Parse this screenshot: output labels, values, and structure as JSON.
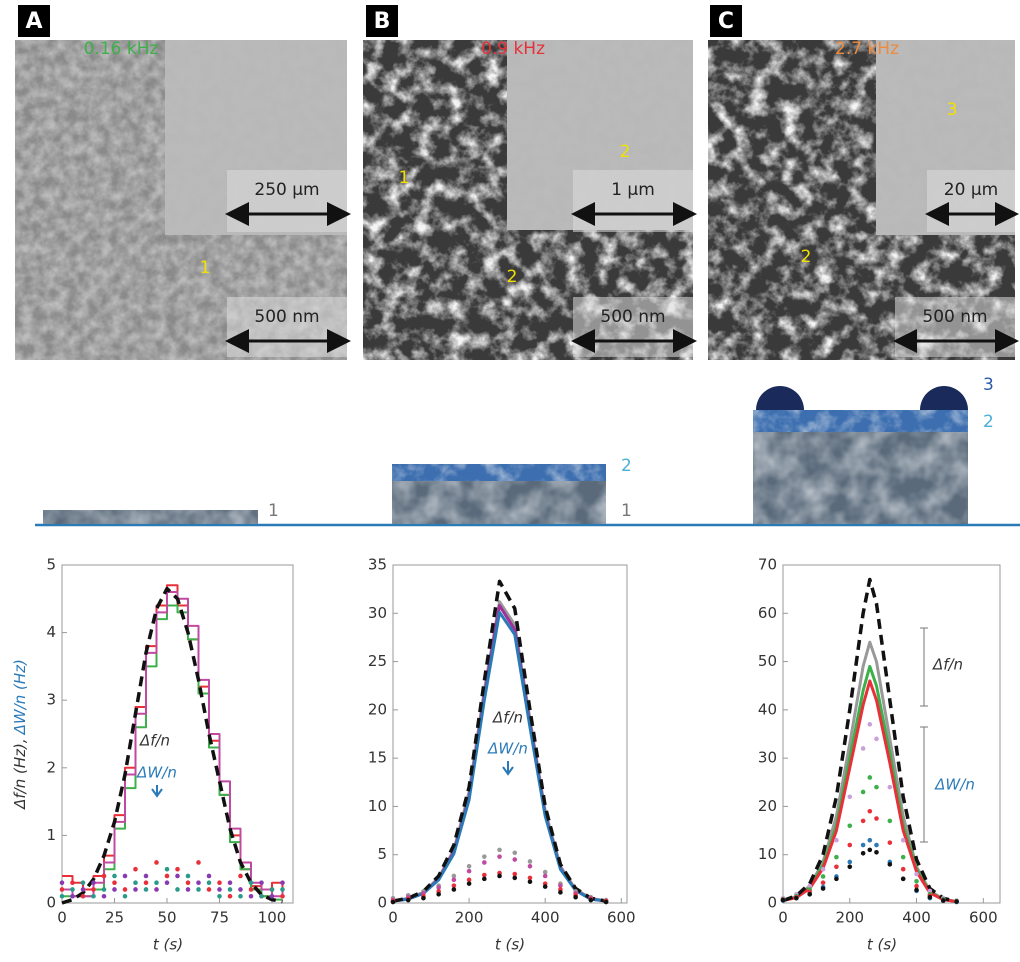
{
  "panels": [
    {
      "label": "A",
      "frequency": "0.16 kHz",
      "color": "#3cb04a",
      "scale_bars": [
        "250 μm",
        "500 nm"
      ],
      "markers": [
        "1"
      ]
    },
    {
      "label": "B",
      "frequency": "0.9 kHz",
      "color": "#e8303a",
      "scale_bars": [
        "1 μm",
        "500 nm"
      ],
      "markers": [
        "1",
        "2",
        "2"
      ]
    },
    {
      "label": "C",
      "frequency": "2.7 kHz",
      "color": "#f08a3c",
      "scale_bars": [
        "20 μm",
        "500 nm"
      ],
      "markers": [
        "3",
        "2"
      ]
    }
  ],
  "schematic": {
    "labels": [
      [
        "1"
      ],
      [
        "2",
        "1"
      ],
      [
        "3",
        "2"
      ]
    ]
  },
  "chart_data": [
    {
      "type": "line",
      "ylabel": [
        "Δf/n (Hz),",
        "ΔW/n (Hz)"
      ],
      "ylabel_colors": [
        "#333333",
        "#2a7ab8"
      ],
      "xlabel": "t (s)",
      "x": [
        0,
        5,
        10,
        15,
        20,
        25,
        30,
        35,
        40,
        45,
        50,
        55,
        60,
        65,
        70,
        75,
        80,
        85,
        90,
        95,
        100,
        105
      ],
      "xlim": [
        0,
        110
      ],
      "xticks": [
        0,
        25,
        50,
        75,
        100
      ],
      "ylim": [
        0,
        5
      ],
      "yticks": [
        0,
        1,
        2,
        3,
        4,
        5
      ],
      "annotations": [
        {
          "text": "Δf/n",
          "color": "#333333"
        },
        {
          "text": "ΔW/n",
          "color": "#2a7ab8"
        }
      ],
      "series": [
        {
          "style": "step",
          "color": "#e8303a",
          "values": [
            0.4,
            0.3,
            0.2,
            0.4,
            0.7,
            1.3,
            2.0,
            2.9,
            3.8,
            4.4,
            4.7,
            4.4,
            3.9,
            3.2,
            2.4,
            1.6,
            1.0,
            0.5,
            0.25,
            0.1,
            0.3,
            0.1
          ]
        },
        {
          "style": "step",
          "color": "#3cb04a",
          "values": [
            0.1,
            0.1,
            0.1,
            0.2,
            0.5,
            1.1,
            1.7,
            2.6,
            3.5,
            4.2,
            4.4,
            4.3,
            3.9,
            3.1,
            2.3,
            1.6,
            0.9,
            0.5,
            0.2,
            0.1,
            0.05,
            0.05
          ]
        },
        {
          "style": "step",
          "color": "#c04aa0",
          "values": [
            0.2,
            0.1,
            0.1,
            0.3,
            0.6,
            1.2,
            1.9,
            2.8,
            3.7,
            4.3,
            4.6,
            4.5,
            4.1,
            3.3,
            2.5,
            1.8,
            1.1,
            0.6,
            0.3,
            0.2,
            0.1,
            0.2
          ]
        },
        {
          "style": "dashed",
          "color": "#111111",
          "values": [
            0,
            0.05,
            0.15,
            0.35,
            0.7,
            1.2,
            1.9,
            2.8,
            3.7,
            4.35,
            4.65,
            4.5,
            4.0,
            3.3,
            2.5,
            1.8,
            1.1,
            0.6,
            0.3,
            0.12,
            0.05,
            0.02
          ]
        },
        {
          "style": "dots",
          "color": "#e8303a",
          "values": [
            0.2,
            0.3,
            0.1,
            0.2,
            0.4,
            0.3,
            0.2,
            0.5,
            0.3,
            0.6,
            0.4,
            0.5,
            0.3,
            0.6,
            0.2,
            0.3,
            0.1,
            0.4,
            0.2,
            0.1,
            0.2,
            0.1
          ]
        },
        {
          "style": "dots",
          "color": "#2a9a8a",
          "values": [
            0.1,
            0.2,
            0.3,
            0.1,
            0.2,
            0.4,
            0.1,
            0.3,
            0.2,
            0.3,
            0.5,
            0.2,
            0.4,
            0.2,
            0.3,
            0.1,
            0.2,
            0.1,
            0.3,
            0.1,
            0.2,
            0.2
          ]
        },
        {
          "style": "dots",
          "color": "#8a3ab0",
          "values": [
            0.3,
            0.1,
            0.2,
            0.3,
            0.1,
            0.2,
            0.4,
            0.2,
            0.4,
            0.2,
            0.3,
            0.4,
            0.2,
            0.3,
            0.4,
            0.2,
            0.3,
            0.2,
            0.1,
            0.3,
            0.1,
            0.3
          ]
        }
      ]
    },
    {
      "type": "line",
      "xlabel": "t (s)",
      "x": [
        0,
        40,
        80,
        120,
        160,
        200,
        240,
        280,
        320,
        360,
        400,
        440,
        480,
        520,
        560
      ],
      "xlim": [
        0,
        615
      ],
      "xticks": [
        0,
        200,
        400,
        600
      ],
      "ylim": [
        0,
        35
      ],
      "yticks": [
        0,
        5,
        10,
        15,
        20,
        25,
        30,
        35
      ],
      "annotations": [
        {
          "text": "Δf/n",
          "color": "#333333"
        },
        {
          "text": "ΔW/n",
          "color": "#2a7ab8"
        }
      ],
      "series": [
        {
          "style": "line",
          "color": "#999999",
          "values": [
            0.2,
            0.5,
            1.1,
            2.6,
            5.5,
            11.5,
            22,
            31.2,
            28.8,
            19,
            9.5,
            3.8,
            1.4,
            0.5,
            0.2
          ]
        },
        {
          "style": "line",
          "color": "#a0309a",
          "values": [
            0.2,
            0.4,
            1.0,
            2.5,
            5.3,
            11,
            21.5,
            30.8,
            28.3,
            18.6,
            9.2,
            3.6,
            1.3,
            0.4,
            0.2
          ]
        },
        {
          "style": "line",
          "color": "#2a7ab8",
          "values": [
            0.2,
            0.4,
            1.0,
            2.4,
            5.1,
            10.7,
            21,
            30.1,
            27.8,
            18.2,
            9,
            3.5,
            1.3,
            0.4,
            0.2
          ]
        },
        {
          "style": "dashed",
          "color": "#111111",
          "values": [
            0.2,
            0.5,
            1.2,
            2.8,
            6,
            12,
            23,
            33.3,
            30.5,
            20,
            10,
            4,
            1.5,
            0.5,
            0.2
          ]
        },
        {
          "style": "dots",
          "color": "#999999",
          "values": [
            0.5,
            0.8,
            1.2,
            1.8,
            2.8,
            3.8,
            4.8,
            5.5,
            5.2,
            4.3,
            3.2,
            2.0,
            1.2,
            0.6,
            0.3
          ]
        },
        {
          "style": "dots",
          "color": "#c04aa0",
          "values": [
            0.3,
            0.6,
            1.0,
            1.6,
            2.4,
            3.3,
            4.2,
            4.8,
            4.5,
            3.8,
            2.8,
            1.8,
            1.0,
            0.5,
            0.2
          ]
        },
        {
          "style": "dots",
          "color": "#e8303a",
          "values": [
            0.2,
            0.4,
            0.7,
            1.2,
            1.8,
            2.4,
            2.9,
            3.1,
            3.0,
            2.6,
            2.0,
            1.4,
            0.8,
            0.4,
            0.2
          ]
        },
        {
          "style": "dots",
          "color": "#111111",
          "values": [
            0.1,
            0.3,
            0.5,
            0.9,
            1.4,
            2.0,
            2.5,
            2.8,
            2.6,
            2.2,
            1.7,
            1.1,
            0.6,
            0.3,
            0.1
          ]
        }
      ]
    },
    {
      "type": "line",
      "xlabel": "t (s)",
      "x": [
        0,
        40,
        80,
        120,
        160,
        200,
        240,
        260,
        280,
        320,
        360,
        400,
        440,
        480,
        520
      ],
      "xlim": [
        0,
        650
      ],
      "xticks": [
        0,
        200,
        400,
        600
      ],
      "ylim": [
        0,
        70
      ],
      "yticks": [
        0,
        10,
        20,
        30,
        40,
        50,
        60,
        70
      ],
      "annotations": [
        {
          "text": "Δf/n",
          "color": "#333333"
        },
        {
          "text": "ΔW/n",
          "color": "#2a7ab8"
        }
      ],
      "series": [
        {
          "style": "line",
          "color": "#999999",
          "values": [
            0.5,
            1.3,
            3.5,
            8.5,
            18,
            33,
            49,
            54,
            50,
            34,
            18,
            7.5,
            2.5,
            0.8,
            0.3
          ]
        },
        {
          "style": "line",
          "color": "#3cb04a",
          "values": [
            0.5,
            1.2,
            3.2,
            7.8,
            16,
            30,
            44,
            49,
            45,
            31,
            16,
            7,
            2.3,
            0.7,
            0.3
          ]
        },
        {
          "style": "line",
          "color": "#e8303a",
          "values": [
            0.5,
            1.1,
            3,
            7.2,
            15,
            28,
            41,
            46,
            42,
            29,
            15,
            6.5,
            2.1,
            0.7,
            0.3
          ]
        },
        {
          "style": "dashed",
          "color": "#111111",
          "values": [
            0.5,
            1.5,
            4,
            10,
            22,
            40,
            60,
            67,
            62,
            42,
            22,
            9,
            3,
            1,
            0.3
          ]
        },
        {
          "style": "dots",
          "color": "#c9a0d8",
          "values": [
            1,
            1.8,
            3.5,
            7,
            13,
            22,
            32,
            37,
            34,
            24,
            13,
            6,
            2.5,
            1,
            0.5
          ]
        },
        {
          "style": "dots",
          "color": "#3cb04a",
          "values": [
            0.8,
            1.4,
            2.8,
            5.5,
            9.5,
            16,
            23,
            26,
            24,
            17,
            9.5,
            4.5,
            1.8,
            0.8,
            0.4
          ]
        },
        {
          "style": "dots",
          "color": "#e8303a",
          "values": [
            0.7,
            1.2,
            2.3,
            4.2,
            7.5,
            12,
            17,
            19,
            17.5,
            12.5,
            7,
            3.5,
            1.5,
            0.6,
            0.3
          ]
        },
        {
          "style": "dots",
          "color": "#2a7ab8",
          "values": [
            0.5,
            1,
            1.8,
            3.3,
            5.5,
            8.5,
            12,
            13,
            12,
            8.5,
            5,
            2.5,
            1,
            0.5,
            0.2
          ]
        },
        {
          "style": "dots",
          "color": "#111111",
          "values": [
            0.6,
            1,
            1.8,
            3,
            5,
            7.5,
            10.3,
            11,
            10.5,
            8,
            5,
            2.7,
            1.2,
            0.5,
            0.3
          ]
        }
      ]
    }
  ]
}
